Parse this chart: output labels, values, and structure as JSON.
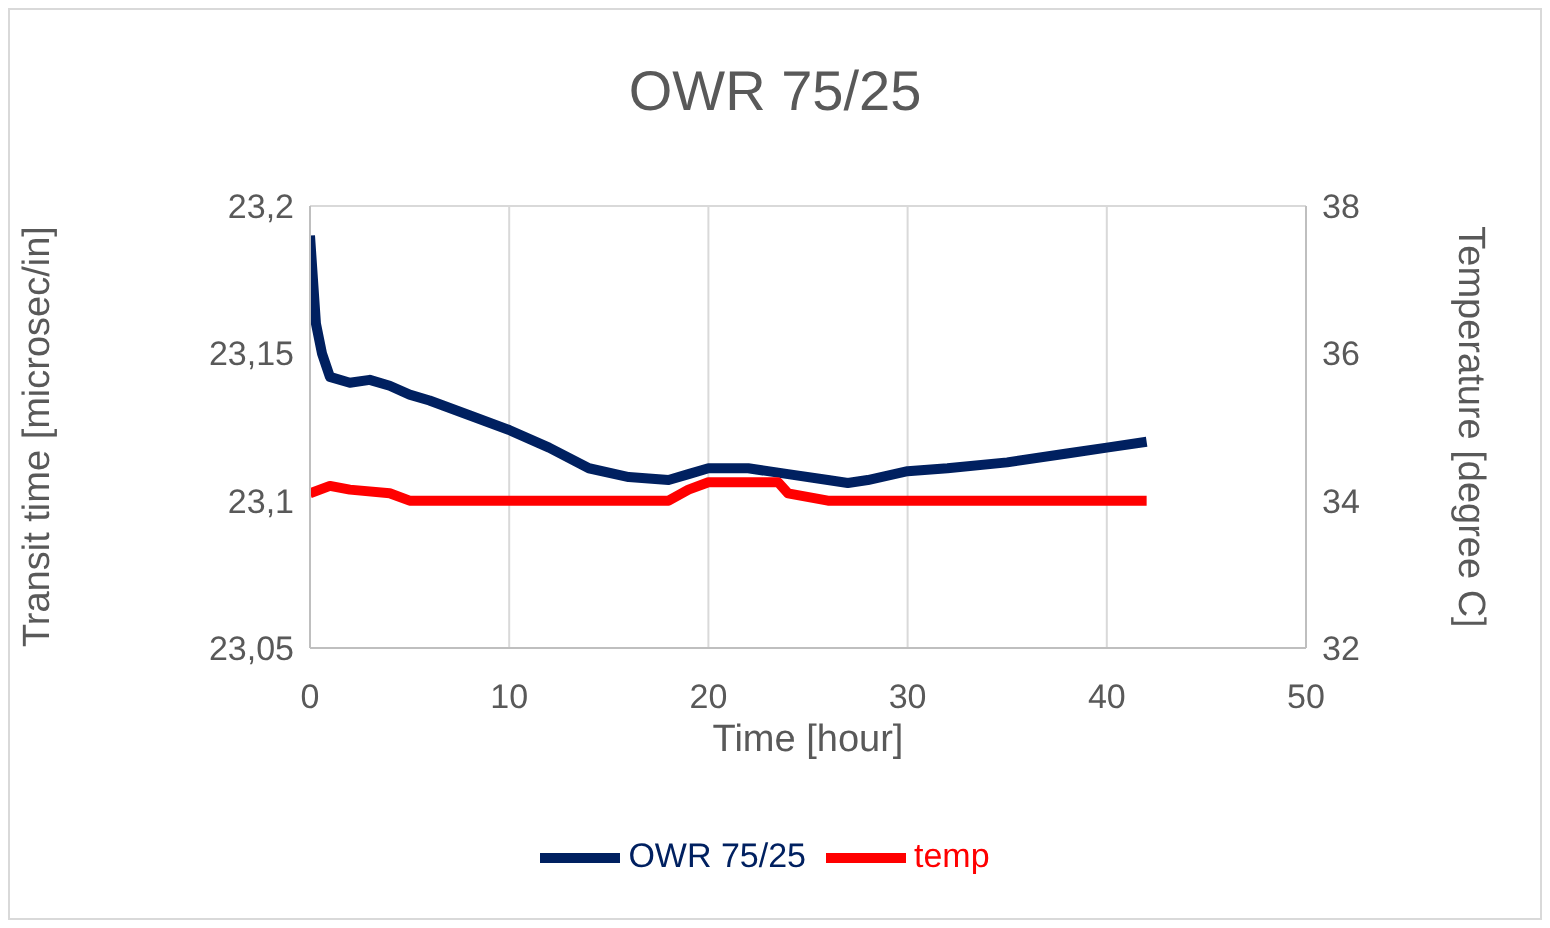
{
  "chart_data": {
    "type": "line",
    "title": "OWR 75/25",
    "xlabel": "Time [hour]",
    "ylabel": "Transit time [microsec/in]",
    "y2label": "Temperature [degree C]",
    "xlim": [
      0,
      50
    ],
    "xticks": [
      0,
      10,
      20,
      30,
      40,
      50
    ],
    "ylim": [
      23.05,
      23.2
    ],
    "yticks": [
      {
        "value": 23.05,
        "label": "23,05"
      },
      {
        "value": 23.1,
        "label": "23,1"
      },
      {
        "value": 23.15,
        "label": "23,15"
      },
      {
        "value": 23.2,
        "label": "23,2"
      }
    ],
    "y2lim": [
      32,
      38
    ],
    "y2ticks": [
      32,
      34,
      36,
      38
    ],
    "grid": true,
    "legend": "bottom",
    "marker": "none",
    "line_style": "solid",
    "series": [
      {
        "name": "OWR 75/25",
        "color": "#002060",
        "x": [
          0,
          0.3,
          0.6,
          1,
          2,
          3,
          4,
          5,
          6,
          8,
          10,
          12,
          14,
          16,
          18,
          19,
          20,
          22,
          24,
          26,
          27,
          28,
          30,
          32,
          35,
          38,
          40,
          42
        ],
        "values": [
          23.19,
          23.16,
          23.15,
          23.142,
          23.14,
          23.141,
          23.139,
          23.136,
          23.134,
          23.129,
          23.124,
          23.118,
          23.111,
          23.108,
          23.107,
          23.109,
          23.111,
          23.111,
          23.109,
          23.107,
          23.106,
          23.107,
          23.11,
          23.111,
          23.113,
          23.116,
          23.118,
          23.12
        ]
      },
      {
        "name": "temp",
        "color": "#ff0000",
        "axis": "y2",
        "x": [
          0,
          1,
          2,
          4,
          5,
          10,
          18,
          19,
          20,
          22,
          23.5,
          24,
          26,
          30,
          42
        ],
        "values": [
          34.1,
          34.2,
          34.15,
          34.1,
          34.0,
          34.0,
          34.0,
          34.15,
          34.25,
          34.25,
          34.25,
          34.1,
          34.0,
          34.0,
          34.0
        ]
      }
    ]
  }
}
